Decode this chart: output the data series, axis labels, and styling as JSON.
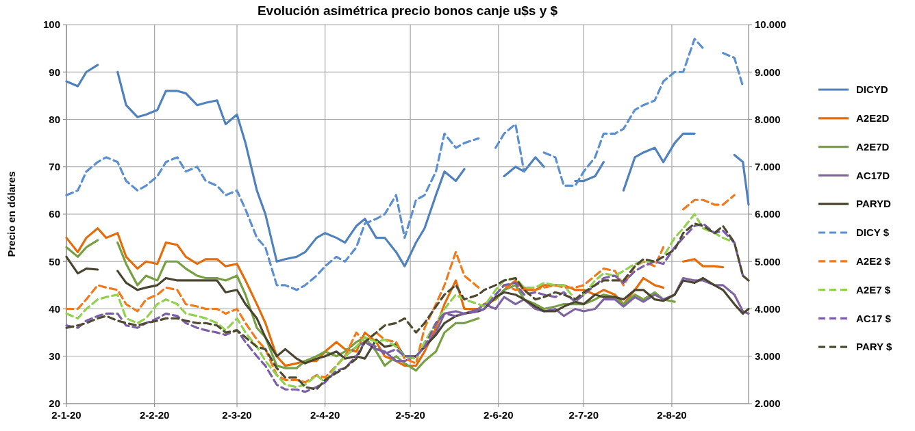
{
  "chart_data": {
    "type": "line",
    "title": "Evolución asimétrica precio bonos canje u$s y $",
    "ylabel": "Precio en dólares",
    "x": [
      "2020-01-02",
      "2020-01-06",
      "2020-01-09",
      "2020-01-13",
      "2020-01-16",
      "2020-01-20",
      "2020-01-23",
      "2020-01-27",
      "2020-01-30",
      "2020-02-03",
      "2020-02-06",
      "2020-02-10",
      "2020-02-13",
      "2020-02-17",
      "2020-02-20",
      "2020-02-24",
      "2020-02-27",
      "2020-03-02",
      "2020-03-05",
      "2020-03-09",
      "2020-03-12",
      "2020-03-16",
      "2020-03-19",
      "2020-03-23",
      "2020-03-26",
      "2020-03-30",
      "2020-04-02",
      "2020-04-06",
      "2020-04-09",
      "2020-04-13",
      "2020-04-16",
      "2020-04-20",
      "2020-04-23",
      "2020-04-27",
      "2020-04-30",
      "2020-05-04",
      "2020-05-07",
      "2020-05-11",
      "2020-05-14",
      "2020-05-18",
      "2020-05-21",
      "2020-05-26",
      "2020-05-28",
      "2020-06-01",
      "2020-06-04",
      "2020-06-08",
      "2020-06-11",
      "2020-06-15",
      "2020-06-18",
      "2020-06-22",
      "2020-06-25",
      "2020-06-29",
      "2020-07-02",
      "2020-07-06",
      "2020-07-09",
      "2020-07-13",
      "2020-07-16",
      "2020-07-20",
      "2020-07-23",
      "2020-07-27",
      "2020-07-30",
      "2020-08-03",
      "2020-08-06",
      "2020-08-10",
      "2020-08-13",
      "2020-08-17",
      "2020-08-20",
      "2020-08-24",
      "2020-08-27",
      "2020-08-29"
    ],
    "xlim": [
      "2020-01-02",
      "2020-08-29"
    ],
    "xticks": [
      {
        "value": "2020-01-02",
        "label": "2-1-20"
      },
      {
        "value": "2020-02-02",
        "label": "2-2-20"
      },
      {
        "value": "2020-03-02",
        "label": "2-3-20"
      },
      {
        "value": "2020-04-02",
        "label": "2-4-20"
      },
      {
        "value": "2020-05-02",
        "label": "2-5-20"
      },
      {
        "value": "2020-06-02",
        "label": "2-6-20"
      },
      {
        "value": "2020-07-02",
        "label": "2-7-20"
      },
      {
        "value": "2020-08-02",
        "label": "2-8-20"
      }
    ],
    "ylim": [
      20,
      100
    ],
    "yticks": [
      20,
      30,
      40,
      50,
      60,
      70,
      80,
      90,
      100
    ],
    "y2lim": [
      2000,
      10000
    ],
    "y2ticks": [
      {
        "value": 2000,
        "label": "2.000"
      },
      {
        "value": 3000,
        "label": "3.000"
      },
      {
        "value": 4000,
        "label": "4.000"
      },
      {
        "value": 5000,
        "label": "5.000"
      },
      {
        "value": 6000,
        "label": "6.000"
      },
      {
        "value": 7000,
        "label": "7.000"
      },
      {
        "value": 8000,
        "label": "8.000"
      },
      {
        "value": 9000,
        "label": "9.000"
      },
      {
        "value": 10000,
        "label": "10.000"
      }
    ],
    "grid": true,
    "legend": "right",
    "marker": "none",
    "series": [
      {
        "name": "DICYD",
        "color": "#4f81bd",
        "line_style": "solid",
        "values": [
          88,
          87,
          90,
          91.5,
          null,
          90,
          83,
          80.5,
          81,
          82,
          86,
          86,
          85.5,
          83,
          83.5,
          84,
          79,
          81,
          75,
          65,
          60,
          50,
          50.5,
          51,
          52,
          55,
          56,
          55,
          54,
          57.5,
          59,
          55,
          55,
          52,
          49,
          54,
          57,
          64,
          69,
          67,
          69.5,
          null,
          null,
          null,
          68,
          70,
          69,
          72,
          70,
          null,
          null,
          67,
          67,
          68,
          71,
          null,
          65,
          72,
          73,
          74,
          71,
          75,
          77,
          77,
          null,
          null,
          null,
          72.5,
          71,
          62
        ]
      },
      {
        "name": "A2E2D",
        "color": "#e46c0a",
        "line_style": "solid",
        "values": [
          55,
          52,
          55,
          57,
          55,
          56,
          51,
          48.5,
          50,
          49.5,
          54,
          53.5,
          51,
          49.5,
          50.5,
          50.5,
          49,
          49.5,
          46,
          41,
          37,
          30,
          28,
          28.5,
          29,
          29,
          31,
          33,
          31.5,
          31,
          35,
          33,
          30,
          29,
          28,
          28,
          31,
          36,
          41,
          46,
          40,
          40,
          41,
          42,
          44,
          46,
          44,
          44,
          45,
          45,
          45,
          44,
          44,
          43,
          44,
          43,
          41,
          44,
          46.5,
          45,
          44.5,
          null,
          50,
          50.5,
          49,
          49,
          48.8,
          null,
          null,
          null
        ]
      },
      {
        "name": "A2E7D",
        "color": "#77a043",
        "line_style": "solid",
        "values": [
          53,
          51,
          53,
          54.5,
          null,
          54,
          49.5,
          45,
          47,
          46,
          50,
          50,
          48.5,
          47,
          46.5,
          46.5,
          46,
          47,
          43,
          36,
          34,
          28,
          27.5,
          27.5,
          29,
          30,
          31,
          30,
          31,
          33,
          34,
          31,
          28,
          30,
          28.5,
          27,
          29,
          31,
          35,
          37,
          37,
          38,
          null,
          42,
          44,
          45,
          42,
          41,
          40,
          40.5,
          41,
          41,
          41,
          42,
          43,
          42.5,
          41,
          43,
          42,
          43.5,
          42,
          41.5,
          null,
          null,
          null,
          null,
          null,
          null,
          null,
          null
        ]
      },
      {
        "name": "AC17D",
        "color": "#8064a2",
        "line_style": "solid",
        "values": [
          null,
          null,
          null,
          null,
          null,
          null,
          null,
          null,
          null,
          null,
          null,
          null,
          null,
          null,
          null,
          null,
          null,
          null,
          null,
          null,
          null,
          null,
          null,
          null,
          null,
          null,
          null,
          null,
          30,
          32,
          33,
          31.5,
          31,
          29,
          29,
          30,
          32,
          35,
          39,
          39.5,
          39,
          40,
          41,
          40,
          42.5,
          41,
          42,
          40,
          39.5,
          40,
          38.5,
          40,
          39.5,
          40,
          42,
          42,
          40.5,
          42.5,
          41.5,
          43,
          42,
          43,
          46.5,
          46,
          46,
          45,
          45,
          43,
          39.5,
          39
        ]
      },
      {
        "name": "PARYD",
        "color": "#4a4530",
        "line_style": "solid",
        "values": [
          51,
          47.5,
          48.5,
          48.3,
          null,
          48,
          45.5,
          44,
          44.5,
          45,
          46.5,
          46,
          46,
          46,
          46,
          46,
          43.5,
          44,
          41,
          38,
          34,
          30,
          31.5,
          29.5,
          28.5,
          29.5,
          30,
          31,
          29.5,
          30,
          29.5,
          33.5,
          32,
          32.5,
          30,
          30,
          32,
          34.5,
          37,
          38.5,
          39,
          39.5,
          40,
          42.5,
          43.5,
          43,
          42,
          40.5,
          39.5,
          39.5,
          40.5,
          41.5,
          41,
          43,
          42.5,
          42.5,
          42,
          44,
          44,
          42,
          41.7,
          43,
          46,
          45.5,
          46.5,
          45,
          44,
          41,
          39,
          40
        ]
      },
      {
        "name": "DICY $",
        "color": "#5b8fcf",
        "line_style": "dashed",
        "axis": "y2",
        "values": [
          6400,
          6500,
          6900,
          7100,
          7200,
          7100,
          6700,
          6500,
          6600,
          6800,
          7100,
          7200,
          6900,
          7000,
          6700,
          6600,
          6400,
          6500,
          6100,
          5500,
          5300,
          4500,
          4500,
          4400,
          4500,
          4700,
          4900,
          5100,
          5000,
          5300,
          5800,
          5900,
          6000,
          6400,
          5500,
          6300,
          6400,
          6900,
          7700,
          7400,
          7500,
          7600,
          null,
          7400,
          7700,
          7900,
          6900,
          null,
          7300,
          7200,
          6600,
          6600,
          6900,
          7200,
          7700,
          7700,
          7800,
          8200,
          8300,
          8400,
          8800,
          9000,
          9000,
          9700,
          9500,
          null,
          9400,
          9300,
          8700,
          null
        ]
      },
      {
        "name": "A2E2 $",
        "color": "#f07a1c",
        "line_style": "dashed",
        "axis": "y2",
        "values": [
          4000,
          4000,
          4200,
          4500,
          4450,
          4400,
          4100,
          3950,
          4200,
          4300,
          4450,
          4400,
          4100,
          4050,
          4000,
          4000,
          3900,
          4000,
          3700,
          3350,
          3150,
          2600,
          2500,
          2500,
          2450,
          2600,
          2550,
          2800,
          3000,
          3500,
          3300,
          3500,
          3350,
          3300,
          2950,
          2850,
          3600,
          4100,
          4500,
          5200,
          4700,
          4450,
          null,
          4300,
          4500,
          4400,
          4450,
          4400,
          4450,
          4500,
          4450,
          4450,
          4500,
          4700,
          4850,
          4800,
          4500,
          4900,
          5000,
          4900,
          5300,
          null,
          6100,
          6300,
          6300,
          6200,
          6200,
          6400,
          null,
          null
        ]
      },
      {
        "name": "A2E7 $",
        "color": "#92d050",
        "line_style": "dashed",
        "axis": "y2",
        "values": [
          3900,
          3800,
          4000,
          4200,
          4250,
          4300,
          3800,
          3700,
          3800,
          4100,
          4200,
          4100,
          3900,
          3850,
          3800,
          3700,
          3550,
          3800,
          3500,
          3200,
          2900,
          2600,
          2400,
          2350,
          2400,
          2600,
          2450,
          2800,
          3000,
          3200,
          3400,
          3300,
          3350,
          3200,
          3000,
          2950,
          3300,
          3700,
          4000,
          4300,
          4200,
          4100,
          4050,
          4400,
          4600,
          4650,
          4450,
          4450,
          4550,
          4500,
          4500,
          4200,
          4300,
          4600,
          4750,
          4700,
          4800,
          4950,
          5000,
          5000,
          5100,
          5500,
          5700,
          6000,
          5700,
          5600,
          5500,
          5400,
          null,
          null
        ]
      },
      {
        "name": "AC17 $",
        "color": "#7a5fa8",
        "line_style": "dashed",
        "axis": "y2",
        "values": [
          3650,
          3600,
          3750,
          3850,
          3900,
          3900,
          3650,
          3600,
          3700,
          3800,
          3900,
          3850,
          3700,
          3600,
          3550,
          3500,
          3450,
          3550,
          3300,
          3000,
          2800,
          2400,
          2300,
          2300,
          2250,
          2350,
          2450,
          2700,
          2750,
          3000,
          3300,
          3200,
          3050,
          3150,
          3000,
          3000,
          3200,
          3700,
          3900,
          3850,
          3900,
          3950,
          4000,
          4300,
          4500,
          4550,
          4300,
          4350,
          4300,
          4250,
          4350,
          4150,
          4300,
          4500,
          4650,
          4700,
          4550,
          4800,
          4900,
          5000,
          4950,
          5300,
          5500,
          5750,
          5800,
          5600,
          5650,
          5400,
          4700,
          null
        ]
      },
      {
        "name": "PARY $",
        "color": "#4f4a32",
        "line_style": "dashed",
        "axis": "y2",
        "values": [
          3600,
          3650,
          3700,
          3800,
          3850,
          3750,
          3700,
          3650,
          3700,
          3750,
          3800,
          3800,
          3750,
          3700,
          3700,
          3650,
          3500,
          3550,
          3400,
          3200,
          3150,
          2750,
          2550,
          2550,
          2350,
          2300,
          2500,
          2650,
          2750,
          2950,
          3300,
          3500,
          3650,
          3700,
          3800,
          3500,
          3700,
          4050,
          4300,
          4500,
          4200,
          4300,
          4400,
          4500,
          4600,
          4650,
          4400,
          4200,
          4250,
          4350,
          4300,
          4200,
          4350,
          4500,
          4600,
          4600,
          4600,
          4900,
          5050,
          5000,
          5100,
          5250,
          5600,
          5800,
          5750,
          5600,
          5750,
          5400,
          4700,
          4600
        ]
      }
    ]
  }
}
